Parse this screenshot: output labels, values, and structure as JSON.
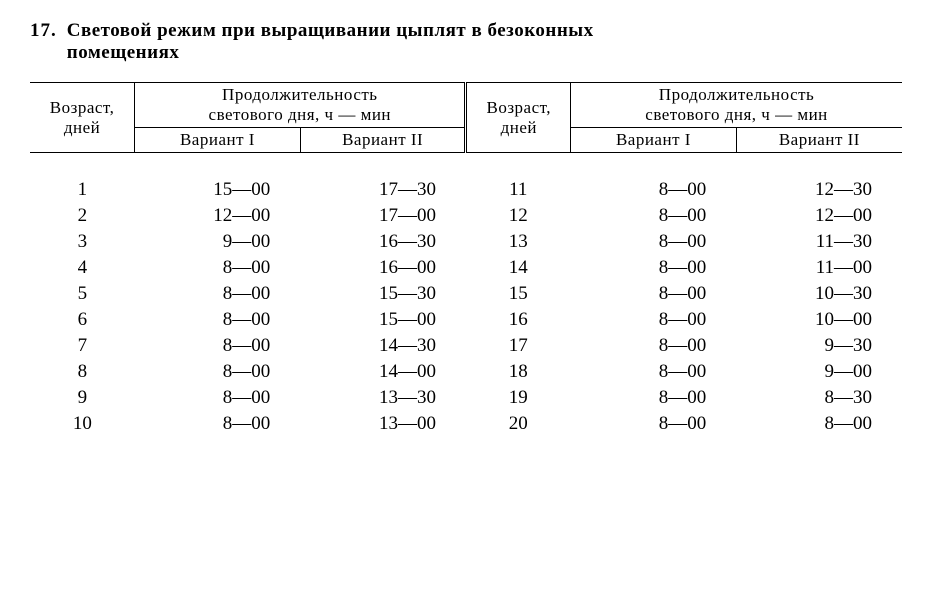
{
  "title": {
    "number": "17.",
    "text_line1": "Световой режим при выращивании цыплят в безоконных",
    "text_line2": "помещениях"
  },
  "headers": {
    "age": "Возраст,\nдней",
    "duration": "Продолжительность\nсветового дня, ч — мин",
    "variant1": "Вариант I",
    "variant2": "Вариант II"
  },
  "rows_left": [
    {
      "age": "1",
      "v1": "15—00",
      "v2": "17—30"
    },
    {
      "age": "2",
      "v1": "12—00",
      "v2": "17—00"
    },
    {
      "age": "3",
      "v1": "9—00",
      "v2": "16—30"
    },
    {
      "age": "4",
      "v1": "8—00",
      "v2": "16—00"
    },
    {
      "age": "5",
      "v1": "8—00",
      "v2": "15—30"
    },
    {
      "age": "6",
      "v1": "8—00",
      "v2": "15—00"
    },
    {
      "age": "7",
      "v1": "8—00",
      "v2": "14—30"
    },
    {
      "age": "8",
      "v1": "8—00",
      "v2": "14—00"
    },
    {
      "age": "9",
      "v1": "8—00",
      "v2": "13—30"
    },
    {
      "age": "10",
      "v1": "8—00",
      "v2": "13—00"
    }
  ],
  "rows_right": [
    {
      "age": "11",
      "v1": "8—00",
      "v2": "12—30"
    },
    {
      "age": "12",
      "v1": "8—00",
      "v2": "12—00"
    },
    {
      "age": "13",
      "v1": "8—00",
      "v2": "11—30"
    },
    {
      "age": "14",
      "v1": "8—00",
      "v2": "11—00"
    },
    {
      "age": "15",
      "v1": "8—00",
      "v2": "10—30"
    },
    {
      "age": "16",
      "v1": "8—00",
      "v2": "10—00"
    },
    {
      "age": "17",
      "v1": "8—00",
      "v2": "9—30"
    },
    {
      "age": "18",
      "v1": "8—00",
      "v2": "9—00"
    },
    {
      "age": "19",
      "v1": "8—00",
      "v2": "8—30"
    },
    {
      "age": "20",
      "v1": "8—00",
      "v2": "8—00"
    }
  ]
}
